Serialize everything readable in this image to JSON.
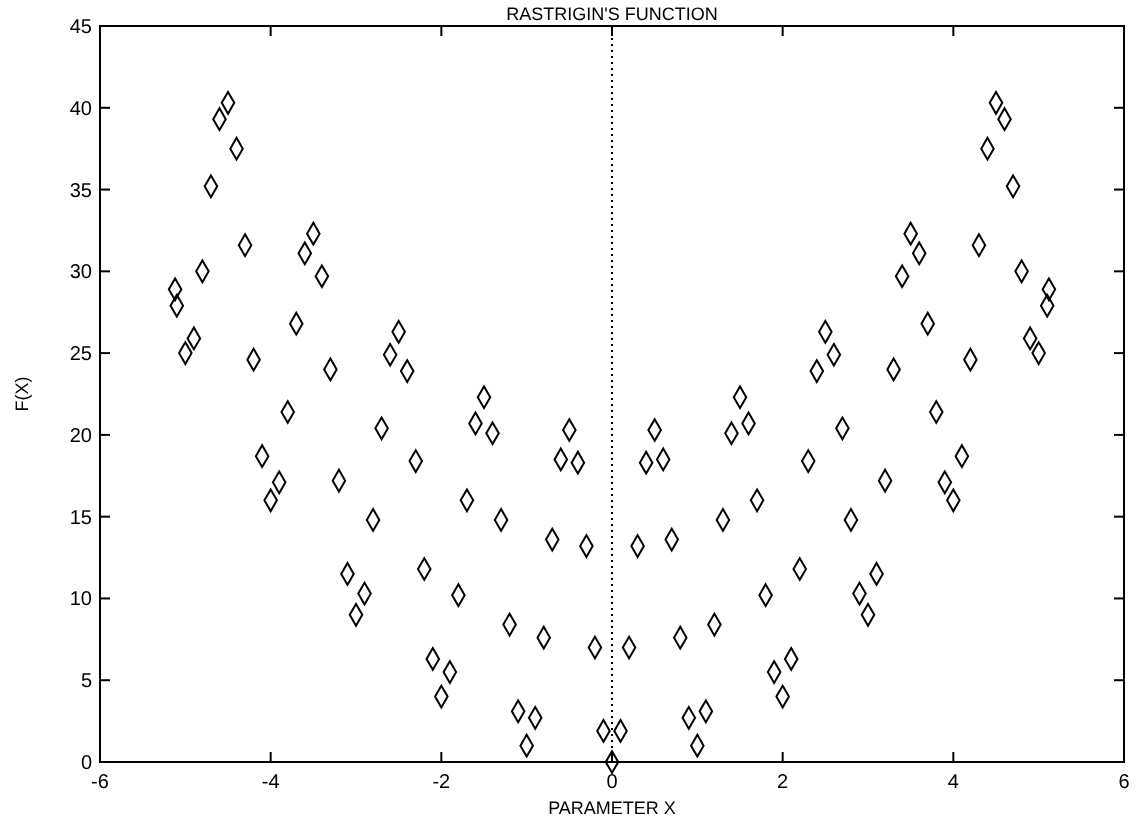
{
  "chart_data": {
    "type": "scatter",
    "title": "RASTRIGIN'S FUNCTION",
    "xlabel": "PARAMETER X",
    "ylabel": "F(X)",
    "xlim": [
      -6,
      6
    ],
    "ylim": [
      0,
      45
    ],
    "xticks": [
      -6,
      -4,
      -2,
      0,
      2,
      4,
      6
    ],
    "yticks": [
      0,
      5,
      10,
      15,
      20,
      25,
      30,
      35,
      40,
      45
    ],
    "marker": "diamond",
    "ref_lines": [
      {
        "axis": "x",
        "value": 0,
        "line_style": "dotted",
        "color": "#000000"
      }
    ],
    "x": [
      -5.12,
      -5.1,
      -5.0,
      -4.9,
      -4.8,
      -4.7,
      -4.6,
      -4.5,
      -4.4,
      -4.3,
      -4.2,
      -4.1,
      -4.0,
      -3.9,
      -3.8,
      -3.7,
      -3.6,
      -3.5,
      -3.4,
      -3.3,
      -3.2,
      -3.1,
      -3.0,
      -2.9,
      -2.8,
      -2.7,
      -2.6,
      -2.5,
      -2.4,
      -2.3,
      -2.2,
      -2.1,
      -2.0,
      -1.9,
      -1.8,
      -1.7,
      -1.6,
      -1.5,
      -1.4,
      -1.3,
      -1.2,
      -1.1,
      -1.0,
      -0.9,
      -0.8,
      -0.7,
      -0.6,
      -0.5,
      -0.4,
      -0.3,
      -0.2,
      -0.1,
      0,
      0.1,
      0.2,
      0.3,
      0.4,
      0.5,
      0.6,
      0.7,
      0.8,
      0.9,
      1.0,
      1.1,
      1.2,
      1.3,
      1.4,
      1.5,
      1.6,
      1.7,
      1.8,
      1.9,
      2.0,
      2.1,
      2.2,
      2.3,
      2.4,
      2.5,
      2.6,
      2.7,
      2.8,
      2.9,
      3.0,
      3.1,
      3.2,
      3.3,
      3.4,
      3.5,
      3.6,
      3.7,
      3.8,
      3.9,
      4.0,
      4.1,
      4.2,
      4.3,
      4.4,
      4.5,
      4.6,
      4.7,
      4.8,
      4.9,
      5.0,
      5.1,
      5.12
    ],
    "series": [
      {
        "color": "#000000",
        "values": [
          28.9,
          27.9,
          25.0,
          25.9,
          30.0,
          35.2,
          39.3,
          40.3,
          37.5,
          31.6,
          24.6,
          18.7,
          16.0,
          17.1,
          21.4,
          26.8,
          31.1,
          32.3,
          29.7,
          24.0,
          17.2,
          11.5,
          9.0,
          10.3,
          14.8,
          20.4,
          24.9,
          26.3,
          23.9,
          18.4,
          11.8,
          6.3,
          4.0,
          5.5,
          10.2,
          16.0,
          20.7,
          22.3,
          20.1,
          14.8,
          8.4,
          3.1,
          1.0,
          2.7,
          7.6,
          13.6,
          18.5,
          20.3,
          18.3,
          13.2,
          7.0,
          1.9,
          0,
          1.9,
          7.0,
          13.2,
          18.3,
          20.3,
          18.5,
          13.6,
          7.6,
          2.7,
          1.0,
          3.1,
          8.4,
          14.8,
          20.1,
          22.3,
          20.7,
          16.0,
          10.2,
          5.5,
          4.0,
          6.3,
          11.8,
          18.4,
          23.9,
          26.3,
          24.9,
          20.4,
          14.8,
          10.3,
          9.0,
          11.5,
          17.2,
          24.0,
          29.7,
          32.3,
          31.1,
          26.8,
          21.4,
          17.1,
          16.0,
          18.7,
          24.6,
          31.6,
          37.5,
          40.3,
          39.3,
          35.2,
          30.0,
          25.9,
          25.0,
          27.9,
          28.9
        ]
      }
    ]
  }
}
